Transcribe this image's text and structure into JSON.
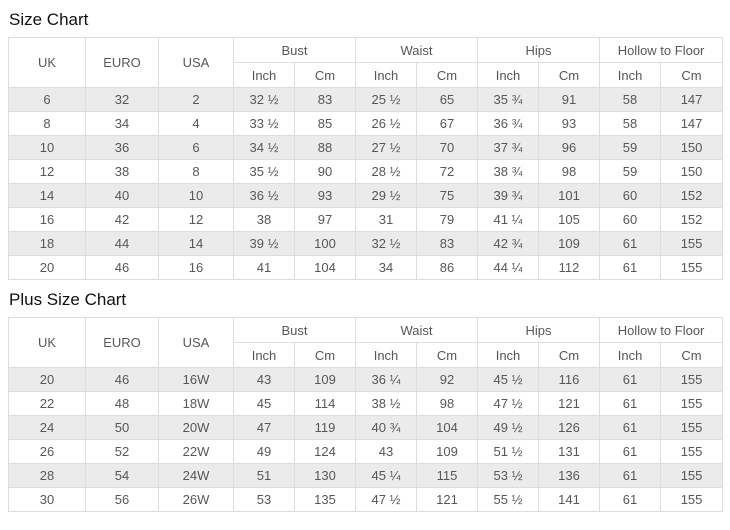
{
  "colors": {
    "stripe": "#ebebeb",
    "border": "#dddddd",
    "text": "#575757",
    "title": "#111111"
  },
  "tables": [
    {
      "title": "Size Chart",
      "header": {
        "uk": "UK",
        "euro": "EURO",
        "usa": "USA",
        "groups": [
          "Bust",
          "Waist",
          "Hips",
          "Hollow to Floor"
        ],
        "sub_inch": "Inch",
        "sub_cm": "Cm"
      },
      "rows": [
        [
          "6",
          "32",
          "2",
          "32 ½",
          "83",
          "25 ½",
          "65",
          "35 ¾",
          "91",
          "58",
          "147"
        ],
        [
          "8",
          "34",
          "4",
          "33 ½",
          "85",
          "26 ½",
          "67",
          "36 ¾",
          "93",
          "58",
          "147"
        ],
        [
          "10",
          "36",
          "6",
          "34 ½",
          "88",
          "27 ½",
          "70",
          "37 ¾",
          "96",
          "59",
          "150"
        ],
        [
          "12",
          "38",
          "8",
          "35 ½",
          "90",
          "28 ½",
          "72",
          "38 ¾",
          "98",
          "59",
          "150"
        ],
        [
          "14",
          "40",
          "10",
          "36 ½",
          "93",
          "29 ½",
          "75",
          "39 ¾",
          "101",
          "60",
          "152"
        ],
        [
          "16",
          "42",
          "12",
          "38",
          "97",
          "31",
          "79",
          "41 ¼",
          "105",
          "60",
          "152"
        ],
        [
          "18",
          "44",
          "14",
          "39 ½",
          "100",
          "32 ½",
          "83",
          "42 ¾",
          "109",
          "61",
          "155"
        ],
        [
          "20",
          "46",
          "16",
          "41",
          "104",
          "34",
          "86",
          "44 ¼",
          "112",
          "61",
          "155"
        ]
      ]
    },
    {
      "title": "Plus Size Chart",
      "header": {
        "uk": "UK",
        "euro": "EURO",
        "usa": "USA",
        "groups": [
          "Bust",
          "Waist",
          "Hips",
          "Hollow to Floor"
        ],
        "sub_inch": "Inch",
        "sub_cm": "Cm"
      },
      "rows": [
        [
          "20",
          "46",
          "16W",
          "43",
          "109",
          "36 ¼",
          "92",
          "45 ½",
          "116",
          "61",
          "155"
        ],
        [
          "22",
          "48",
          "18W",
          "45",
          "114",
          "38 ½",
          "98",
          "47 ½",
          "121",
          "61",
          "155"
        ],
        [
          "24",
          "50",
          "20W",
          "47",
          "119",
          "40 ¾",
          "104",
          "49 ½",
          "126",
          "61",
          "155"
        ],
        [
          "26",
          "52",
          "22W",
          "49",
          "124",
          "43",
          "109",
          "51 ½",
          "131",
          "61",
          "155"
        ],
        [
          "28",
          "54",
          "24W",
          "51",
          "130",
          "45 ¼",
          "115",
          "53 ½",
          "136",
          "61",
          "155"
        ],
        [
          "30",
          "56",
          "26W",
          "53",
          "135",
          "47 ½",
          "121",
          "55 ½",
          "141",
          "61",
          "155"
        ]
      ]
    }
  ]
}
